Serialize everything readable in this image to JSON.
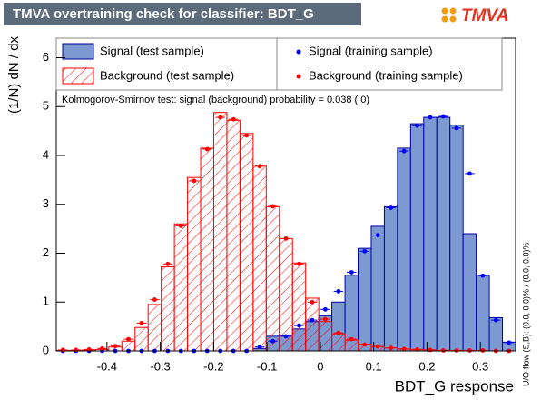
{
  "chart_data": {
    "type": "histogram",
    "title": "TMVA overtraining check for classifier: BDT_G",
    "logo": "TMVA",
    "x_label": "BDT_G response",
    "y_label": "(1/N) dN / dx",
    "annotation": "Kolmogorov-Smirnov test: signal (background) probability = 0.038 (    0)",
    "side_note": "U/O-flow (S,B): (0.0, 0.0)% / (0.0, 0.0)%",
    "bins": [
      -0.495,
      -0.4704,
      -0.4458,
      -0.4212,
      -0.3966,
      -0.372,
      -0.3474,
      -0.3228,
      -0.2982,
      -0.2736,
      -0.249,
      -0.2244,
      -0.1998,
      -0.1752,
      -0.1506,
      -0.126,
      -0.1014,
      -0.0768,
      -0.0522,
      -0.0276,
      -0.003,
      0.0216,
      0.0462,
      0.0708,
      0.0954,
      0.12,
      0.1446,
      0.1692,
      0.1938,
      0.2184,
      0.243,
      0.2676,
      0.2922,
      0.3168,
      0.3414,
      0.366
    ],
    "xlim": [
      -0.495,
      0.366
    ],
    "xticks": [
      -0.4,
      -0.3,
      -0.2,
      -0.1,
      0,
      0.1,
      0.2,
      0.3
    ],
    "ylim": [
      0,
      6.4
    ],
    "yticks": [
      0,
      1,
      2,
      3,
      4,
      5,
      6
    ],
    "grid": false,
    "series": [
      {
        "name": "Signal (test sample)",
        "style": "fill",
        "color": "#7d99d1",
        "edge": "#0000a0",
        "values": [
          0,
          0,
          0,
          0,
          0,
          0,
          0,
          0,
          0,
          0,
          0,
          0,
          0,
          0,
          0,
          0.05,
          0.3,
          0.32,
          0.45,
          0.6,
          0.72,
          1.0,
          1.55,
          2.1,
          2.55,
          2.95,
          4.15,
          4.65,
          4.78,
          4.78,
          4.62,
          2.4,
          1.55,
          0.68,
          0.18
        ]
      },
      {
        "name": "Background (test sample)",
        "style": "hatch",
        "color": "#ff0000",
        "values": [
          0.01,
          0.01,
          0.02,
          0.03,
          0.08,
          0.2,
          0.48,
          0.95,
          1.72,
          2.6,
          3.55,
          4.15,
          4.88,
          4.72,
          4.45,
          3.8,
          2.95,
          2.3,
          1.8,
          1.08,
          0.6,
          0.35,
          0.22,
          0.14,
          0.09,
          0.06,
          0.04,
          0.03,
          0.02,
          0.01,
          0.01,
          0.01,
          0.005,
          0,
          0
        ]
      },
      {
        "name": "Signal (training sample)",
        "style": "marker",
        "color": "#0000ff",
        "values": [
          0,
          0,
          0,
          0,
          0,
          0,
          0,
          0,
          0,
          0,
          0,
          0,
          0,
          0,
          0,
          0.08,
          0.2,
          0.3,
          0.52,
          0.63,
          0.85,
          1.22,
          1.61,
          2.04,
          2.37,
          2.93,
          4.09,
          4.61,
          4.78,
          4.8,
          4.56,
          3.63,
          1.54,
          0.63,
          0.17
        ]
      },
      {
        "name": "Background (training sample)",
        "style": "marker",
        "color": "#ff0000",
        "values": [
          0.02,
          0.02,
          0.03,
          0.05,
          0.1,
          0.24,
          0.57,
          1.05,
          1.78,
          2.56,
          3.48,
          4.13,
          4.78,
          4.74,
          4.41,
          3.78,
          2.96,
          2.3,
          1.78,
          1.0,
          0.65,
          0.37,
          0.24,
          0.13,
          0.09,
          0.06,
          0.04,
          0.03,
          0.02,
          0.01,
          0.01,
          0.01,
          0.01,
          0,
          0
        ]
      }
    ]
  }
}
